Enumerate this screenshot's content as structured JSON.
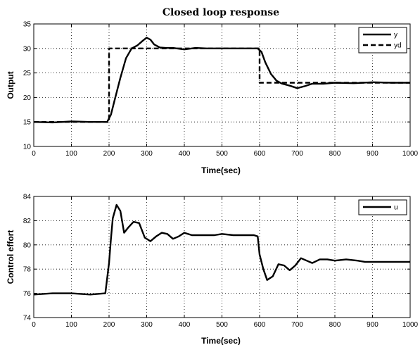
{
  "chart_data": [
    {
      "type": "line",
      "title": "Closed loop response",
      "xlabel": "Time(sec)",
      "ylabel": "Output",
      "xlim": [
        0,
        1000
      ],
      "ylim": [
        10,
        35
      ],
      "xticks": [
        0,
        100,
        200,
        300,
        400,
        500,
        600,
        700,
        800,
        900,
        1000
      ],
      "yticks": [
        10,
        15,
        20,
        25,
        30,
        35
      ],
      "grid": true,
      "legend_position": "top-right",
      "series": [
        {
          "name": "y",
          "style": "solid",
          "color": "#000000",
          "x": [
            0,
            50,
            100,
            150,
            195,
            205,
            215,
            230,
            245,
            260,
            275,
            290,
            300,
            310,
            320,
            335,
            350,
            370,
            400,
            430,
            460,
            500,
            550,
            595,
            605,
            615,
            630,
            645,
            660,
            680,
            700,
            720,
            740,
            770,
            800,
            850,
            900,
            950,
            1000
          ],
          "y": [
            15,
            14.9,
            15.1,
            15,
            15,
            16.5,
            19.5,
            24,
            28,
            30,
            30.6,
            31.6,
            32.2,
            31.8,
            30.8,
            30.2,
            30.1,
            30.1,
            29.8,
            30.1,
            30,
            30,
            30,
            30,
            29.3,
            27.2,
            24.8,
            23.4,
            22.8,
            22.4,
            21.9,
            22.3,
            22.8,
            22.8,
            23,
            22.9,
            23.1,
            23,
            23
          ]
        },
        {
          "name": "yd",
          "style": "dashed",
          "color": "#000000",
          "x": [
            0,
            200,
            200,
            600,
            600,
            1000
          ],
          "y": [
            15,
            15,
            30,
            30,
            23,
            23
          ]
        }
      ]
    },
    {
      "type": "line",
      "title": "",
      "xlabel": "Time(sec)",
      "ylabel": "Control effort",
      "xlim": [
        0,
        1000
      ],
      "ylim": [
        74,
        84
      ],
      "xticks": [
        0,
        100,
        200,
        300,
        400,
        500,
        600,
        700,
        800,
        900,
        1000
      ],
      "yticks": [
        74,
        76,
        78,
        80,
        82,
        84
      ],
      "grid": true,
      "legend_position": "top-right",
      "series": [
        {
          "name": "u",
          "style": "solid",
          "color": "#000000",
          "x": [
            0,
            50,
            100,
            150,
            190,
            200,
            205,
            210,
            220,
            230,
            240,
            250,
            265,
            280,
            295,
            310,
            325,
            340,
            355,
            370,
            385,
            400,
            420,
            440,
            460,
            480,
            500,
            530,
            560,
            585,
            595,
            600,
            610,
            620,
            635,
            650,
            665,
            680,
            695,
            710,
            725,
            740,
            760,
            780,
            800,
            830,
            860,
            880,
            900,
            950,
            1000
          ],
          "y": [
            75.9,
            76,
            76,
            75.9,
            76,
            78.5,
            80.5,
            82.2,
            83.3,
            82.8,
            81,
            81.4,
            81.9,
            81.8,
            80.6,
            80.3,
            80.7,
            81,
            80.9,
            80.5,
            80.7,
            81,
            80.8,
            80.8,
            80.8,
            80.8,
            80.9,
            80.8,
            80.8,
            80.8,
            80.7,
            79.2,
            78,
            77.1,
            77.4,
            78.4,
            78.3,
            77.9,
            78.3,
            78.9,
            78.7,
            78.5,
            78.8,
            78.8,
            78.7,
            78.8,
            78.7,
            78.6,
            78.6,
            78.6,
            78.6
          ]
        }
      ]
    }
  ]
}
